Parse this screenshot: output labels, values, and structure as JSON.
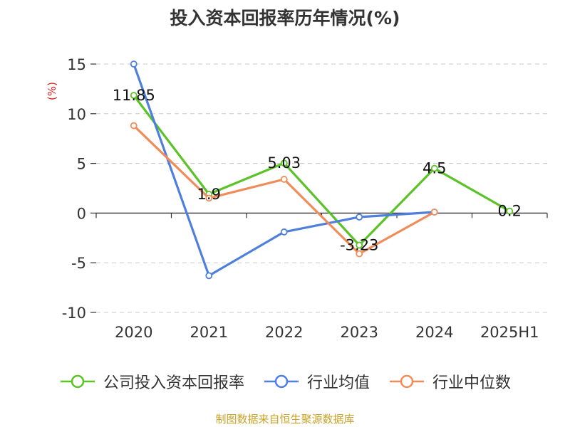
{
  "chart_data": {
    "type": "line",
    "title": "投入资本回报率历年情况(%)",
    "ylabel": "(%)",
    "categories": [
      "2020",
      "2021",
      "2022",
      "2023",
      "2024",
      "2025H1"
    ],
    "ylim": [
      -10,
      15
    ],
    "yticks": [
      15,
      10,
      5,
      0,
      -5,
      -10
    ],
    "grid": true,
    "legend_position": "bottom",
    "series": [
      {
        "name": "公司投入资本回报率",
        "color": "#5bc227",
        "values": [
          11.85,
          1.9,
          5.03,
          -3.23,
          4.5,
          0.2
        ],
        "labels": [
          "11.85",
          "1.9",
          "5.03",
          "-3.23",
          "4.5",
          "0.2"
        ]
      },
      {
        "name": "行业均值",
        "color": "#4e7fdc",
        "values": [
          15.0,
          -6.3,
          -1.9,
          -0.4,
          0.1,
          null
        ]
      },
      {
        "name": "行业中位数",
        "color": "#f08c5a",
        "values": [
          8.8,
          1.5,
          3.4,
          -4.1,
          0.1,
          null
        ]
      }
    ],
    "source": "制图数据来自恒生聚源数据库"
  }
}
